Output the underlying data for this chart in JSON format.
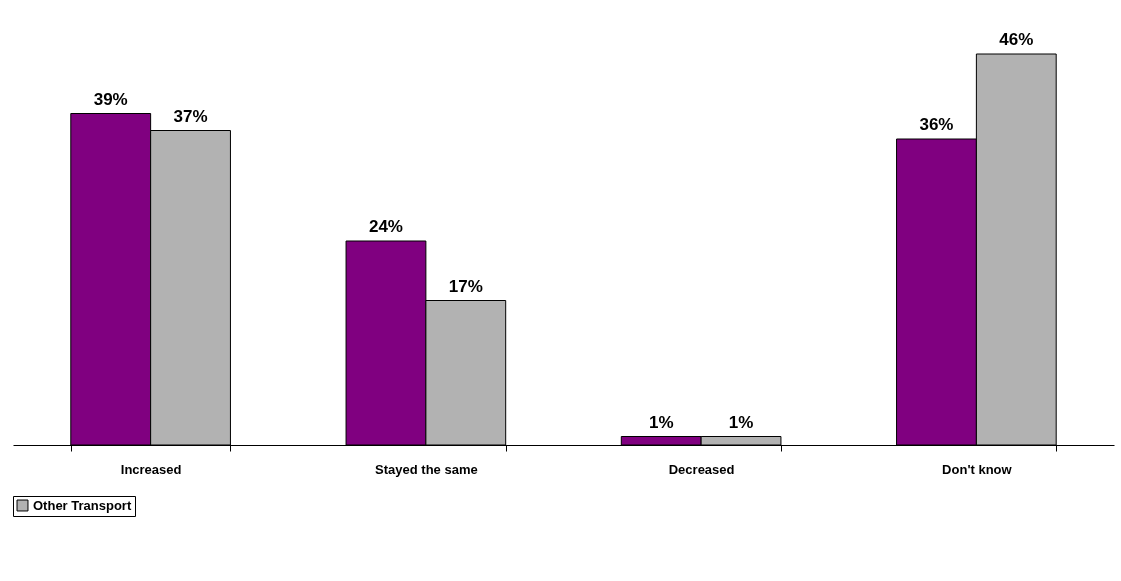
{
  "chart_data": {
    "type": "bar",
    "categories": [
      "Increased",
      "Stayed the same",
      "Decreased",
      "Don't know"
    ],
    "series": [
      {
        "color": "#800080",
        "values": [
          39,
          24,
          1,
          36
        ],
        "value_labels": [
          "39%",
          "24%",
          "1%",
          "36%"
        ]
      },
      {
        "name": "Other Transport",
        "color": "#b2b2b2",
        "values": [
          37,
          17,
          1,
          46
        ],
        "value_labels": [
          "37%",
          "17%",
          "1%",
          "46%"
        ]
      }
    ],
    "legend": "bottom",
    "grid": false
  }
}
